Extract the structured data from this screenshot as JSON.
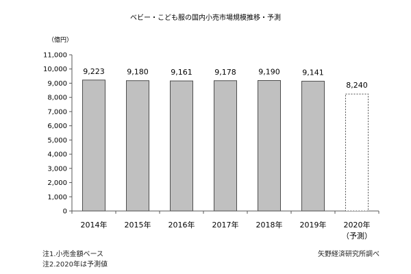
{
  "chart_data": {
    "type": "bar",
    "title": "ベビー・こども服の国内小売市場規模推移・予測",
    "unit_label": "（億円）",
    "categories": [
      "2014年",
      "2015年",
      "2016年",
      "2017年",
      "2018年",
      "2019年",
      "2020年"
    ],
    "category_sublabels": [
      "",
      "",
      "",
      "",
      "",
      "",
      "（予測）"
    ],
    "values": [
      9223,
      9180,
      9161,
      9178,
      9190,
      9141,
      8240
    ],
    "value_labels": [
      "9,223",
      "9,180",
      "9,161",
      "9,178",
      "9,190",
      "9,141",
      "8,240"
    ],
    "forecast": [
      false,
      false,
      false,
      false,
      false,
      false,
      true
    ],
    "ylim": [
      0,
      11000
    ],
    "yticks": [
      0,
      1000,
      2000,
      3000,
      4000,
      5000,
      6000,
      7000,
      8000,
      9000,
      10000,
      11000
    ],
    "ytick_labels": [
      "0",
      "1,000",
      "2,000",
      "3,000",
      "4,000",
      "5,000",
      "6,000",
      "7,000",
      "8,000",
      "9,000",
      "10,000",
      "11,000"
    ],
    "grid": false,
    "colors": {
      "bar_fill": "#c0c0c0",
      "bar_stroke": "#4d4d4d",
      "forecast_fill": "#ffffff",
      "axis": "#555555"
    }
  },
  "notes": [
    "注1.小売金額ベース",
    "注2.2020年は予測値"
  ],
  "source": "矢野経済研究所調べ"
}
